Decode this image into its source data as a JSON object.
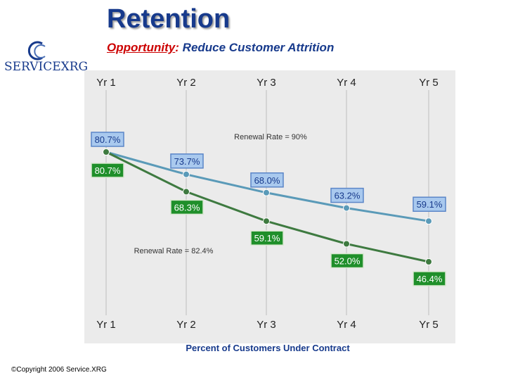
{
  "header": {
    "title": "Retention",
    "subtitle_lead": "Opportunity",
    "subtitle_sep": ":",
    "subtitle_rest": " Reduce Customer Attrition"
  },
  "logo": {
    "text": "SERVICEXRG",
    "icon": "servicexrg-swirl-icon"
  },
  "footer": {
    "copyright": "©Copyright 2006 Service.XRG"
  },
  "colors": {
    "title": "#173a8c",
    "accent_red": "#cc0000",
    "plot_bg": "#ebebeb",
    "blue_line": "#5a9ab8",
    "blue_box": "#a9c9ee",
    "blue_box_border": "#5b86c8",
    "green_line": "#3e7a40",
    "green_box": "#1f8f2a"
  },
  "chart_data": {
    "type": "line",
    "categories": [
      "Yr 1",
      "Yr 2",
      "Yr 3",
      "Yr 4",
      "Yr 5"
    ],
    "xlabel": "Percent of Customers Under Contract",
    "ylim": [
      40,
      90
    ],
    "grid": "vertical",
    "series": [
      {
        "name": "Renewal Rate = 90%",
        "values": [
          80.7,
          73.7,
          68.0,
          63.2,
          59.1
        ],
        "labels": [
          "80.7%",
          "73.7%",
          "68.0%",
          "63.2%",
          "59.1%"
        ]
      },
      {
        "name": "Renewal Rate = 82.4%",
        "values": [
          80.7,
          68.3,
          59.1,
          52.0,
          46.4
        ],
        "labels": [
          "80.7%",
          "68.3%",
          "59.1%",
          "52.0%",
          "46.4%"
        ]
      }
    ]
  }
}
